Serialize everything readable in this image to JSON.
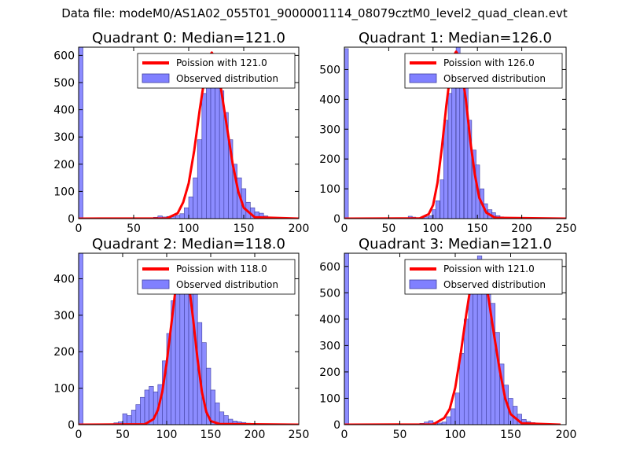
{
  "suptitle": "Data file: modeM0/AS1A02_055T01_9000001114_08079cztM0_level2_quad_clean.evt",
  "colors": {
    "bar_fill": "#8080ff",
    "bar_edge": "#4040a0",
    "poisson_line": "#ff0000",
    "axes": "#000000",
    "background": "#ffffff"
  },
  "chart_data": [
    {
      "type": "bar",
      "title": "Quadrant 0: Median=121.0",
      "xlabel": "",
      "ylabel": "",
      "xlim": [
        0,
        200
      ],
      "ylim": [
        0,
        630
      ],
      "xticks": [
        0,
        50,
        100,
        150,
        200
      ],
      "yticks": [
        0,
        100,
        200,
        300,
        400,
        500,
        600
      ],
      "legend": {
        "position": "top-right",
        "line_label": "Poission with 121.0",
        "bar_label": "Observed distribution"
      },
      "median": 121.0,
      "bin_width": 4.0,
      "series": [
        {
          "name": "Observed distribution",
          "type": "bar",
          "x": [
            0,
            68,
            72,
            76,
            80,
            84,
            88,
            92,
            96,
            100,
            104,
            108,
            112,
            116,
            120,
            124,
            128,
            132,
            136,
            140,
            144,
            148,
            152,
            156,
            160,
            164,
            168,
            172,
            176
          ],
          "values": [
            630,
            5,
            10,
            6,
            8,
            7,
            12,
            18,
            40,
            80,
            150,
            290,
            460,
            530,
            595,
            580,
            470,
            390,
            290,
            200,
            150,
            110,
            60,
            40,
            25,
            20,
            10,
            5,
            3
          ]
        },
        {
          "name": "Poission with 121.0",
          "type": "line",
          "x": [
            0,
            80,
            90,
            95,
            100,
            105,
            110,
            113,
            116,
            119,
            121,
            124,
            127,
            130,
            135,
            140,
            145,
            150,
            160,
            200
          ],
          "values": [
            0,
            1,
            20,
            60,
            130,
            250,
            400,
            480,
            560,
            600,
            610,
            590,
            540,
            460,
            330,
            200,
            100,
            40,
            5,
            0
          ]
        }
      ]
    },
    {
      "type": "bar",
      "title": "Quadrant 1: Median=126.0",
      "xlabel": "",
      "ylabel": "",
      "xlim": [
        0,
        250
      ],
      "ylim": [
        0,
        575
      ],
      "xticks": [
        0,
        50,
        100,
        150,
        200,
        250
      ],
      "yticks": [
        0,
        100,
        200,
        300,
        400,
        500
      ],
      "legend": {
        "position": "top-right",
        "line_label": "Poission with 126.0",
        "bar_label": "Observed distribution"
      },
      "median": 126.0,
      "bin_width": 4.5,
      "series": [
        {
          "name": "Observed distribution",
          "type": "bar",
          "x": [
            0,
            72,
            76,
            80,
            85,
            90,
            95,
            99,
            103,
            108,
            112,
            117,
            121,
            126,
            130,
            135,
            139,
            144,
            148,
            153,
            157,
            162,
            166,
            171,
            175,
            180,
            184
          ],
          "values": [
            570,
            8,
            5,
            3,
            4,
            6,
            10,
            30,
            60,
            130,
            330,
            420,
            540,
            575,
            540,
            460,
            330,
            230,
            180,
            100,
            50,
            30,
            20,
            10,
            6,
            4,
            2
          ]
        },
        {
          "name": "Poission with 126.0",
          "type": "line",
          "x": [
            0,
            85,
            95,
            100,
            105,
            110,
            115,
            120,
            123,
            126,
            129,
            132,
            137,
            142,
            147,
            152,
            160,
            170,
            250
          ],
          "values": [
            0,
            1,
            15,
            45,
            120,
            240,
            380,
            500,
            545,
            560,
            545,
            500,
            400,
            260,
            150,
            70,
            20,
            3,
            0
          ]
        }
      ]
    },
    {
      "type": "bar",
      "title": "Quadrant 2: Median=118.0",
      "xlabel": "",
      "ylabel": "",
      "xlim": [
        0,
        250
      ],
      "ylim": [
        0,
        470
      ],
      "xticks": [
        0,
        50,
        100,
        150,
        200,
        250
      ],
      "yticks": [
        0,
        100,
        200,
        300,
        400
      ],
      "legend": {
        "position": "top-right",
        "line_label": "Poission with 118.0",
        "bar_label": "Observed distribution"
      },
      "median": 118.0,
      "bin_width": 5.0,
      "series": [
        {
          "name": "Observed distribution",
          "type": "bar",
          "x": [
            0,
            40,
            45,
            50,
            55,
            60,
            65,
            70,
            75,
            80,
            85,
            90,
            95,
            100,
            105,
            110,
            115,
            120,
            125,
            130,
            135,
            140,
            145,
            150,
            155,
            160,
            165,
            170,
            175,
            180,
            185,
            190,
            195,
            200
          ],
          "values": [
            470,
            5,
            8,
            30,
            25,
            40,
            55,
            75,
            95,
            105,
            90,
            110,
            175,
            250,
            340,
            380,
            420,
            420,
            440,
            400,
            280,
            225,
            155,
            95,
            60,
            35,
            25,
            15,
            10,
            8,
            6,
            4,
            3,
            2
          ]
        },
        {
          "name": "Poission with 118.0",
          "type": "line",
          "x": [
            0,
            75,
            85,
            90,
            95,
            100,
            105,
            110,
            114,
            118,
            122,
            126,
            130,
            135,
            140,
            145,
            150,
            160,
            250
          ],
          "values": [
            0,
            1,
            15,
            40,
            90,
            170,
            270,
            370,
            420,
            440,
            420,
            370,
            290,
            180,
            90,
            35,
            10,
            2,
            0
          ]
        }
      ]
    },
    {
      "type": "bar",
      "title": "Quadrant 3: Median=121.0",
      "xlabel": "",
      "ylabel": "",
      "xlim": [
        0,
        200
      ],
      "ylim": [
        0,
        650
      ],
      "xticks": [
        0,
        50,
        100,
        150,
        200
      ],
      "yticks": [
        0,
        100,
        200,
        300,
        400,
        500,
        600
      ],
      "legend": {
        "position": "top-right",
        "line_label": "Poission with 121.0",
        "bar_label": "Observed distribution"
      },
      "median": 121.0,
      "bin_width": 4.0,
      "series": [
        {
          "name": "Observed distribution",
          "type": "bar",
          "x": [
            0,
            68,
            72,
            76,
            80,
            84,
            88,
            92,
            96,
            100,
            104,
            108,
            112,
            116,
            120,
            124,
            128,
            132,
            136,
            140,
            144,
            148,
            152,
            156,
            160,
            164,
            168,
            172,
            176
          ],
          "values": [
            650,
            5,
            10,
            15,
            8,
            6,
            10,
            30,
            60,
            120,
            270,
            400,
            560,
            600,
            640,
            600,
            550,
            460,
            350,
            230,
            150,
            100,
            70,
            40,
            20,
            12,
            8,
            4,
            2
          ]
        },
        {
          "name": "Poission with 121.0",
          "type": "line",
          "x": [
            0,
            80,
            90,
            95,
            100,
            105,
            110,
            113,
            116,
            119,
            121,
            124,
            127,
            130,
            135,
            140,
            145,
            150,
            160,
            195
          ],
          "values": [
            0,
            1,
            25,
            60,
            140,
            270,
            420,
            500,
            570,
            610,
            620,
            600,
            560,
            480,
            340,
            210,
            100,
            40,
            5,
            0
          ]
        }
      ]
    }
  ]
}
